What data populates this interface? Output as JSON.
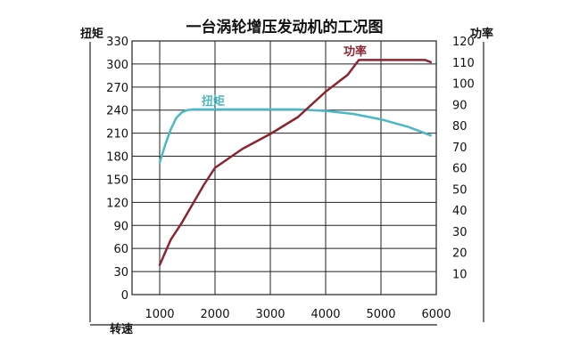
{
  "chart_data": {
    "type": "line",
    "title": "一台涡轮增压发动机的工况图",
    "xlabel": "转速",
    "ylabel_left": "扭矩",
    "ylabel_right": "功率",
    "xlim": [
      500,
      6000
    ],
    "x_ticks": [
      1000,
      2000,
      3000,
      4000,
      5000,
      6000
    ],
    "left_axis": {
      "ylim": [
        0,
        330
      ],
      "ticks": [
        0,
        30,
        60,
        90,
        120,
        150,
        180,
        210,
        240,
        270,
        300,
        330
      ]
    },
    "right_axis": {
      "ylim": [
        0,
        120
      ],
      "ticks": [
        10,
        20,
        30,
        40,
        50,
        60,
        70,
        80,
        90,
        100,
        110,
        120
      ]
    },
    "grid": true,
    "series": [
      {
        "name": "扭矩",
        "axis": "left",
        "color": "#4bb8c4",
        "x": [
          1000,
          1100,
          1200,
          1300,
          1400,
          1500,
          1600,
          2000,
          3000,
          3500,
          4000,
          4500,
          5000,
          5500,
          5900
        ],
        "y": [
          172,
          195,
          215,
          230,
          237,
          240,
          241,
          241,
          241,
          241,
          239,
          235,
          228,
          218,
          207
        ]
      },
      {
        "name": "功率",
        "axis": "right",
        "color": "#8b2530",
        "x": [
          1000,
          1100,
          1200,
          1400,
          1600,
          1800,
          2000,
          2500,
          3000,
          3500,
          4000,
          4200,
          4400,
          4600,
          5000,
          5500,
          5800,
          5900
        ],
        "y": [
          14,
          20,
          26,
          34,
          43,
          52,
          60,
          69,
          76,
          84,
          96,
          100,
          104,
          111,
          111,
          111,
          111,
          110
        ]
      }
    ]
  }
}
